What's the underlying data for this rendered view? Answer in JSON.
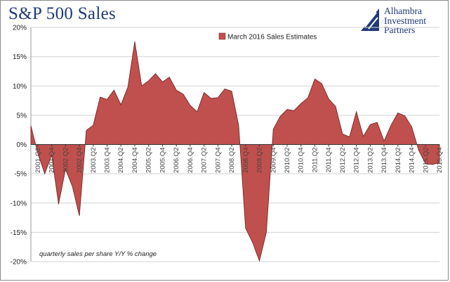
{
  "header": {
    "title": "S&P 500 Sales"
  },
  "logo": {
    "line1": "Alhambra",
    "line2": "Investment",
    "line3": "Partners",
    "color": "#1f3a78"
  },
  "chart_data": {
    "type": "area",
    "title": "S&P 500 Sales",
    "legend": {
      "label": "March 2016 Sales Estimates",
      "placement": "top-center"
    },
    "annotation": "quarterly sales per share Y/Y % change",
    "fill_color": "#c0504d",
    "ylim": [
      -20,
      20
    ],
    "yticks": [
      20,
      15,
      10,
      5,
      0,
      -5,
      -10,
      -15,
      -20
    ],
    "ytick_labels": [
      "20%",
      "15%",
      "10%",
      "5%",
      "0%",
      "-5%",
      "-10%",
      "-15%",
      "-20%"
    ],
    "xtick_labels": [
      "2001.Q2",
      "2001.Q4",
      "2002.Q2",
      "2002.Q4",
      "2003.Q2",
      "2003.Q4",
      "2004.Q2",
      "2004.Q4",
      "2005.Q2",
      "2005.Q4",
      "2006.Q2",
      "2006.Q4",
      "2007.Q2",
      "2007.Q4",
      "2008.Q2",
      "2008.Q4",
      "2009.Q2",
      "2009.Q4",
      "2010.Q2",
      "2010.Q4",
      "2011.Q2",
      "2011.Q4",
      "2012.Q2",
      "2012.Q4",
      "2013.Q2",
      "2013.Q4",
      "2014.Q2",
      "2014.Q4",
      "2015.Q2",
      "2015.Q4"
    ],
    "series": [
      {
        "name": "March 2016 Sales Estimates",
        "x": [
          "2001.Q1",
          "2001.Q2",
          "2001.Q3",
          "2001.Q4",
          "2002.Q1",
          "2002.Q2",
          "2002.Q3",
          "2002.Q4",
          "2003.Q1",
          "2003.Q2",
          "2003.Q3",
          "2003.Q4",
          "2004.Q1",
          "2004.Q2",
          "2004.Q3",
          "2004.Q4",
          "2005.Q1",
          "2005.Q2",
          "2005.Q3",
          "2005.Q4",
          "2006.Q1",
          "2006.Q2",
          "2006.Q3",
          "2006.Q4",
          "2007.Q1",
          "2007.Q2",
          "2007.Q3",
          "2007.Q4",
          "2008.Q1",
          "2008.Q2",
          "2008.Q3",
          "2008.Q4",
          "2009.Q1",
          "2009.Q2",
          "2009.Q3",
          "2009.Q4",
          "2010.Q1",
          "2010.Q2",
          "2010.Q3",
          "2010.Q4",
          "2011.Q1",
          "2011.Q2",
          "2011.Q3",
          "2011.Q4",
          "2012.Q1",
          "2012.Q2",
          "2012.Q3",
          "2012.Q4",
          "2013.Q1",
          "2013.Q2",
          "2013.Q3",
          "2013.Q4",
          "2014.Q1",
          "2014.Q2",
          "2014.Q3",
          "2014.Q4",
          "2015.Q1",
          "2015.Q2",
          "2015.Q3",
          "2015.Q4"
        ],
        "values": [
          3.2,
          -1.5,
          -5.0,
          -1.8,
          -10.2,
          -4.2,
          -7.2,
          -12.2,
          2.4,
          3.3,
          8.1,
          7.7,
          9.3,
          6.8,
          9.8,
          17.6,
          10.0,
          10.9,
          12.1,
          10.7,
          11.5,
          9.3,
          8.6,
          6.7,
          5.6,
          8.9,
          7.9,
          8.0,
          9.5,
          9.1,
          3.3,
          -14.3,
          -16.7,
          -19.9,
          -15.0,
          2.6,
          4.8,
          6.0,
          5.8,
          7.0,
          8.0,
          11.2,
          10.4,
          7.8,
          6.5,
          1.8,
          1.3,
          5.6,
          1.4,
          3.4,
          3.8,
          0.6,
          3.3,
          5.4,
          4.9,
          3.0,
          -1.0,
          -3.3,
          -3.4,
          -3.1
        ]
      }
    ]
  }
}
